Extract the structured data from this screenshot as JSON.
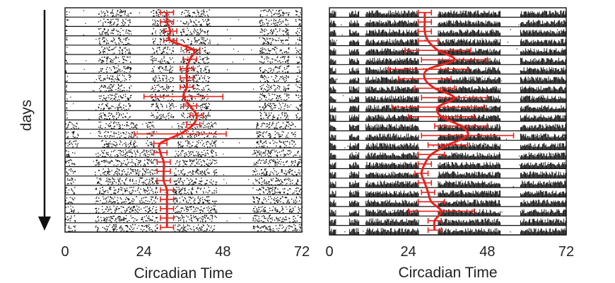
{
  "chart_data": [
    {
      "type": "actogram",
      "xlabel": "Circadian Time",
      "ylabel": "days",
      "xlim": [
        0,
        72
      ],
      "xticks": [
        "0",
        "24",
        "48",
        "72"
      ],
      "rows": 24,
      "activity_style": "dense-dots",
      "activity_color": "#111111",
      "onset_color": "#e8211b",
      "activity_bands": [
        {
          "from_day": 1,
          "to_day": 12,
          "bands": [
            [
              0,
              0.6
            ],
            [
              10,
              20
            ],
            [
              26,
              33
            ],
            [
              35,
              44
            ],
            [
              59,
              68
            ],
            [
              70,
              72
            ]
          ]
        },
        {
          "from_day": 13,
          "to_day": 15,
          "bands": [
            [
              0,
              4
            ],
            [
              10,
              22
            ],
            [
              24,
              27
            ],
            [
              34,
              46
            ],
            [
              58,
              70
            ]
          ]
        },
        {
          "from_day": 16,
          "to_day": 24,
          "bands": [
            [
              0,
              3
            ],
            [
              9,
              28
            ],
            [
              33,
              46
            ],
            [
              57,
              72
            ]
          ]
        }
      ],
      "onset_ct": [
        31,
        31,
        32,
        32,
        39,
        38,
        37,
        37,
        37,
        36,
        38,
        40,
        39,
        35,
        29,
        29,
        30,
        30,
        30,
        31,
        31,
        31,
        31,
        31
      ],
      "onset_error": [
        2,
        2,
        2,
        2,
        2,
        2,
        2,
        2,
        2,
        12,
        2,
        2,
        2,
        14,
        2,
        2,
        2,
        2,
        2,
        2,
        2,
        2,
        2,
        2
      ]
    },
    {
      "type": "actogram",
      "xlabel": "Circadian Time",
      "ylabel": "",
      "xlim": [
        0,
        72
      ],
      "xticks": [
        "0",
        "24",
        "48",
        "72"
      ],
      "rows": 24,
      "activity_style": "bars",
      "activity_color": "#111111",
      "onset_color": "#e8211b",
      "activity_bands": [
        {
          "from_day": 1,
          "to_day": 24,
          "bands": [
            [
              0,
              2
            ],
            [
              6,
              9
            ],
            [
              11,
              27
            ],
            [
              33,
              52
            ],
            [
              58,
              72
            ]
          ]
        }
      ],
      "onset_ct": [
        29,
        29,
        29,
        30,
        33,
        38,
        30,
        29,
        32,
        38,
        33,
        34,
        40,
        42,
        36,
        31,
        29,
        28,
        29,
        30,
        31,
        34,
        32,
        32
      ],
      "onset_error": [
        2,
        2,
        2,
        3,
        10,
        10,
        12,
        8,
        6,
        10,
        14,
        10,
        8,
        14,
        6,
        4,
        2,
        2,
        2,
        2,
        4,
        10,
        2,
        2
      ]
    }
  ]
}
